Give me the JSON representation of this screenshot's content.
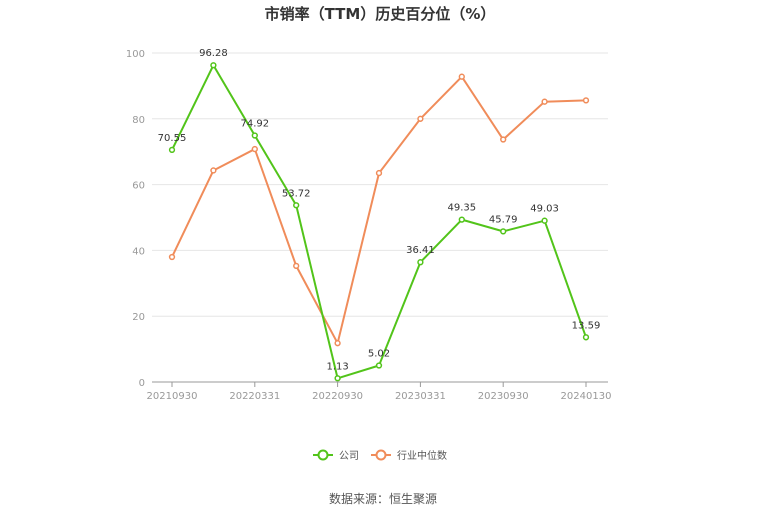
{
  "chart_data": {
    "type": "line",
    "title": "市销率（TTM）历史百分位（%）",
    "xlabel": "",
    "ylabel": "",
    "ylim": [
      0,
      100
    ],
    "yticks": [
      0,
      20,
      40,
      60,
      80,
      100
    ],
    "x_tick_labels": [
      "20210930",
      "20220331",
      "20220930",
      "20230331",
      "20230930",
      "20240130"
    ],
    "grid": true,
    "legend_position": "bottom-center",
    "series": [
      {
        "name": "公司",
        "color": "#52c41a",
        "values": [
          70.55,
          96.28,
          74.92,
          53.72,
          1.13,
          5.02,
          36.41,
          49.35,
          45.79,
          49.03,
          13.59
        ],
        "labels": [
          "70.55",
          "96.28",
          "74.92",
          "53.72",
          "1.13",
          "5.02",
          "36.41",
          "49.35",
          "45.79",
          "49.03",
          "13.59"
        ]
      },
      {
        "name": "行业中位数",
        "color": "#f08c5a",
        "values": [
          38,
          64.3,
          70.8,
          35.3,
          11.8,
          63.5,
          80,
          92.8,
          73.7,
          85.2,
          85.6
        ]
      }
    ]
  },
  "source_text": "数据来源：恒生聚源"
}
